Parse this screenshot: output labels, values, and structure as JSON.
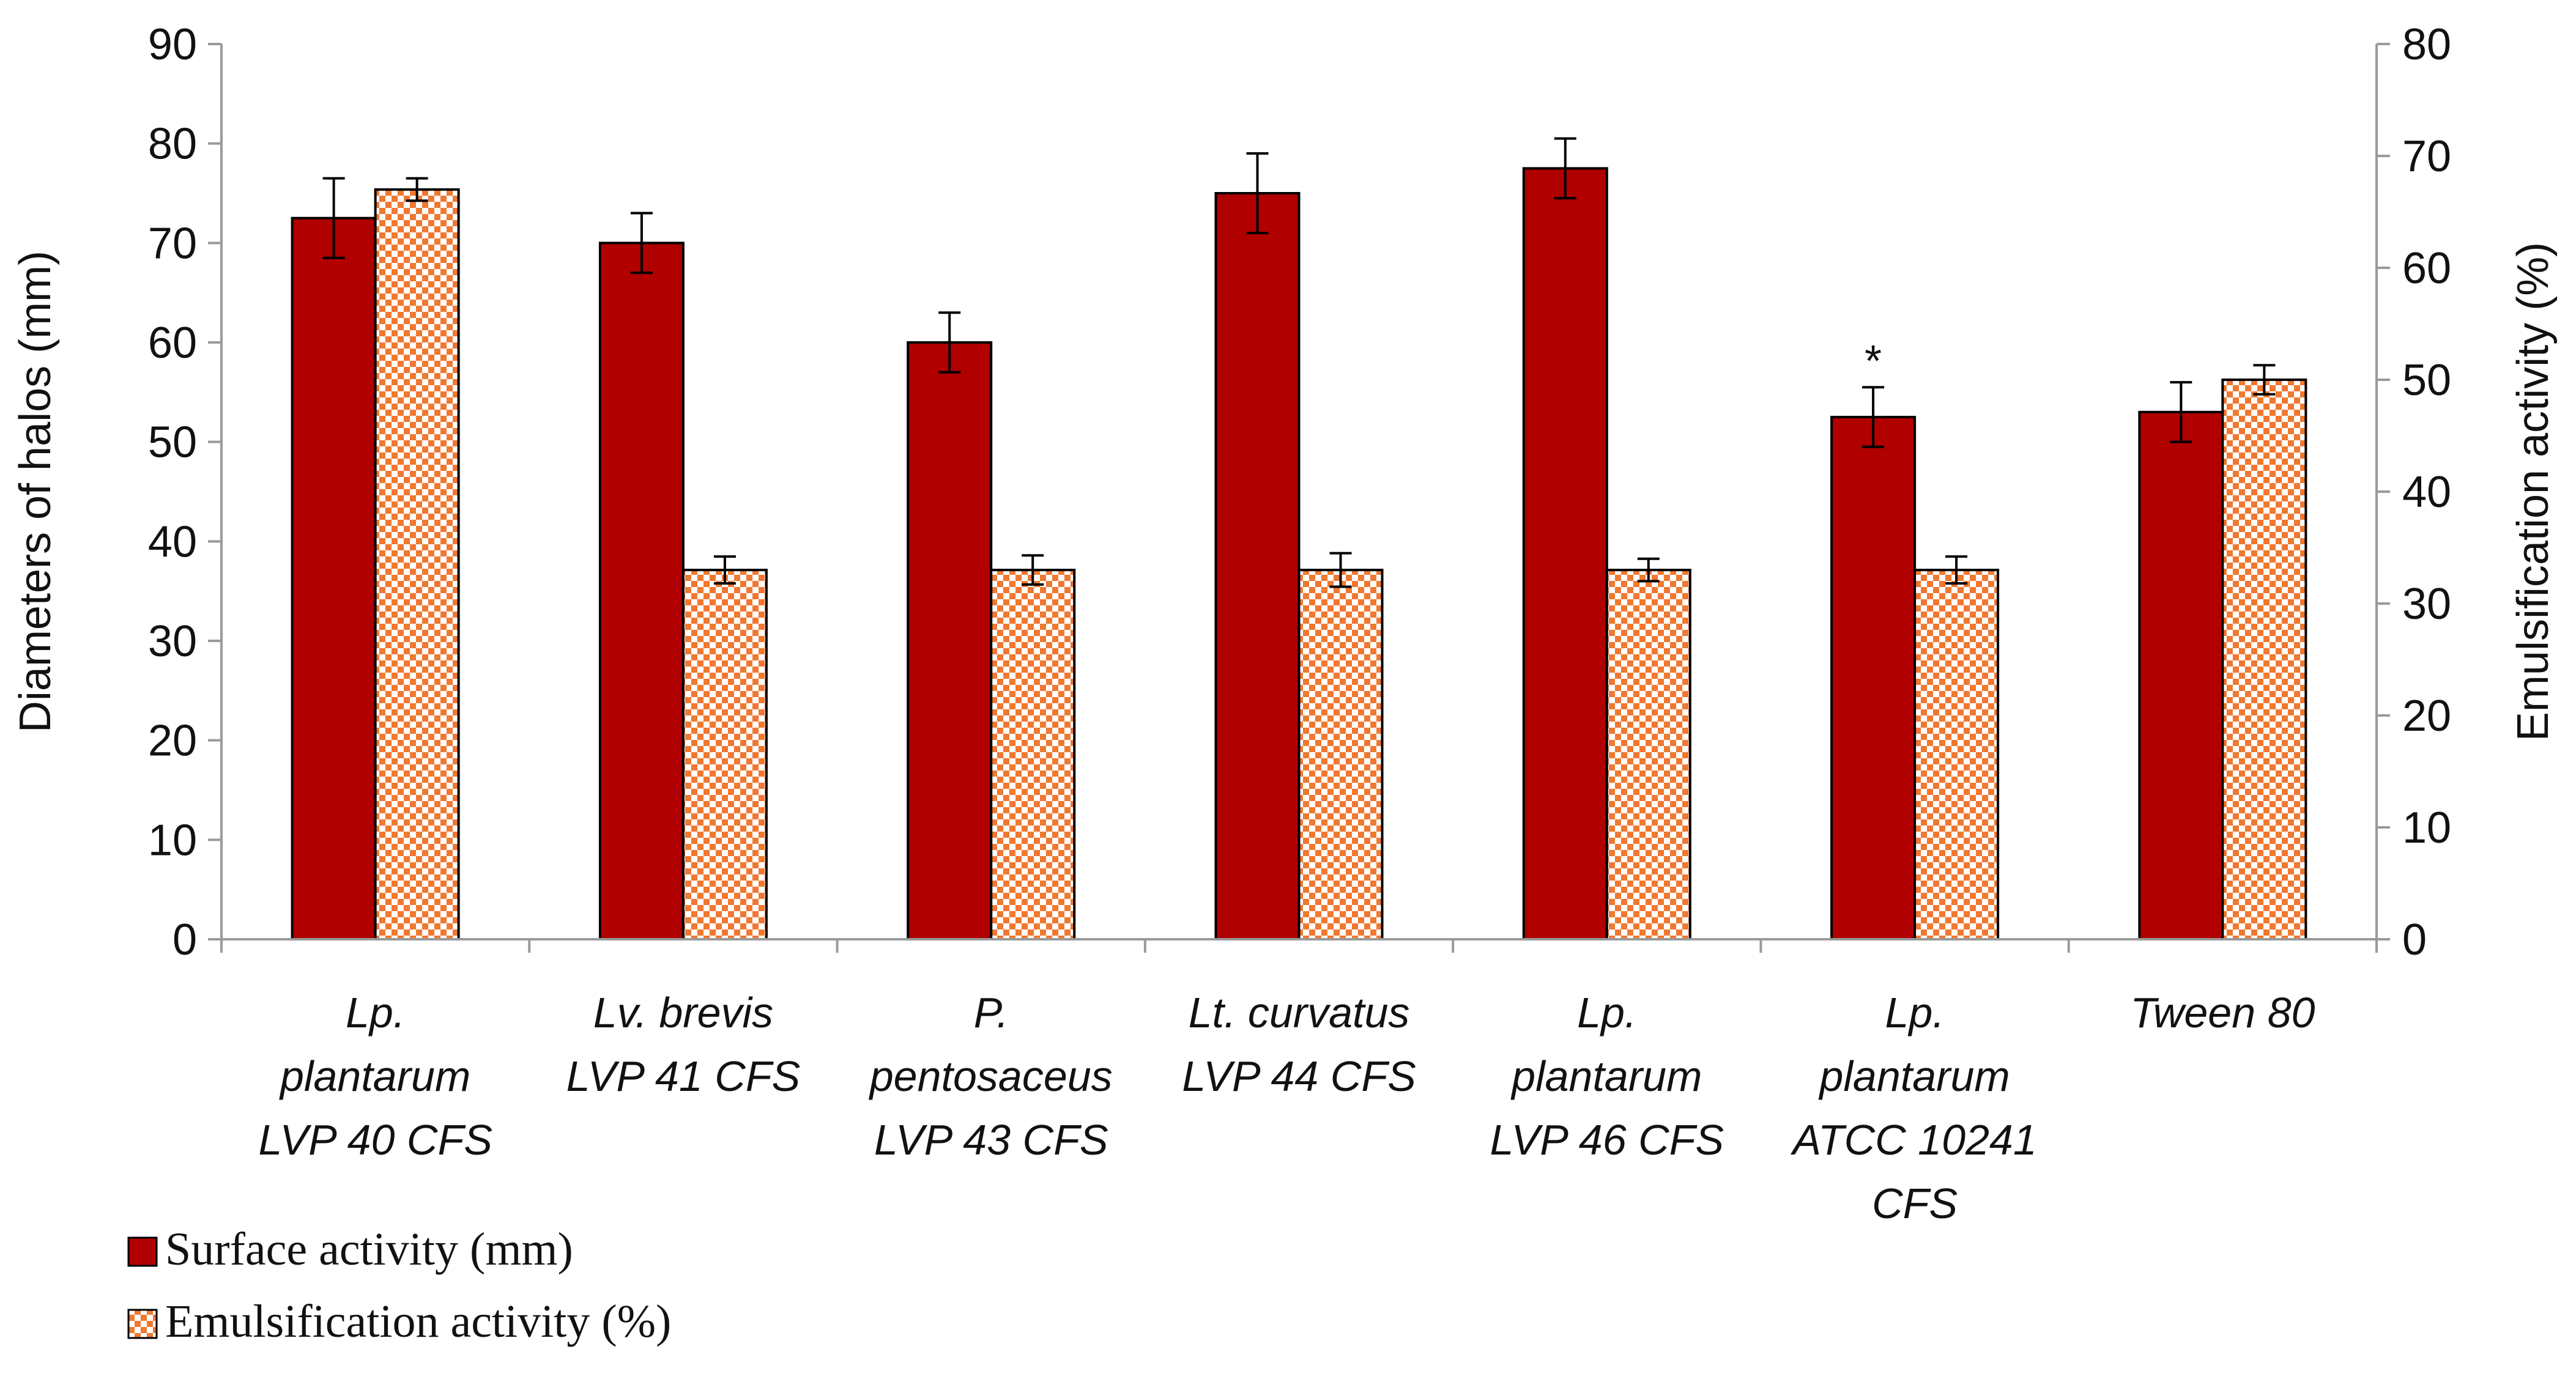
{
  "chart_data": {
    "type": "bar",
    "title": "",
    "ylabel": "Diameters of halos (mm)",
    "ylabel_right": "Emulsification activity (%)",
    "ylim": [
      0,
      90
    ],
    "ylim_right": [
      0,
      80
    ],
    "yticks": [
      0,
      10,
      20,
      30,
      40,
      50,
      60,
      70,
      80,
      90
    ],
    "yticks_right": [
      0,
      10,
      20,
      30,
      40,
      50,
      60,
      70,
      80
    ],
    "categories": [
      [
        "Lp.",
        "plantarum",
        "LVP 40 CFS"
      ],
      [
        "Lv. brevis",
        "LVP 41 CFS"
      ],
      [
        "P.",
        "pentosaceus",
        "LVP 43 CFS"
      ],
      [
        "Lt. curvatus",
        "LVP 44 CFS"
      ],
      [
        "Lp.",
        "plantarum",
        "LVP 46 CFS"
      ],
      [
        "Lp.",
        "plantarum",
        "ATCC 10241",
        "CFS"
      ],
      [
        "Tween 80"
      ]
    ],
    "series": [
      {
        "name": "Surface activity (mm)",
        "axis": "left",
        "color": "#b00000",
        "pattern": "solid",
        "values": [
          72.5,
          70,
          60,
          75,
          77.5,
          52.5,
          53
        ],
        "errors": [
          4,
          3,
          3,
          4,
          3,
          3,
          3
        ]
      },
      {
        "name": "Emulsification activity (%)",
        "axis": "right",
        "color": "#f07830",
        "pattern": "checker",
        "values": [
          67,
          33,
          33,
          33,
          33,
          33,
          50
        ],
        "errors": [
          1,
          1.2,
          1.3,
          1.5,
          1,
          1.2,
          1.3
        ]
      }
    ],
    "annotations": [
      {
        "category_index": 5,
        "series": 0,
        "text": "*"
      }
    ],
    "legend": "bottom-left",
    "grid": false
  }
}
